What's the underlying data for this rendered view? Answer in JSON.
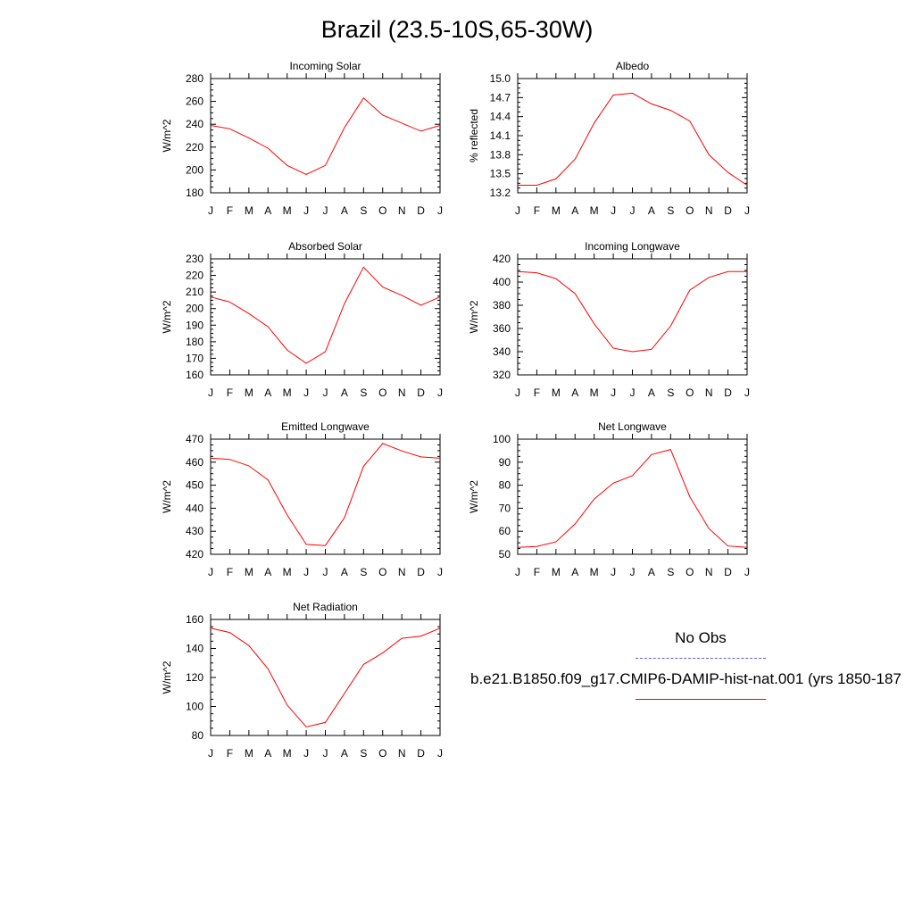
{
  "title": "Brazil (23.5-10S,65-30W)",
  "legend": {
    "obs_label": "No Obs",
    "model_label": "b.e21.B1850.f09_g17.CMIP6-DAMIP-hist-nat.001 (yrs 1850-187",
    "obs_color": "#5a5aff",
    "model_color": "#ff0000"
  },
  "chart_data": [
    {
      "type": "line",
      "title": "Incoming Solar",
      "ylabel": "W/m^2",
      "categories": [
        "J",
        "F",
        "M",
        "A",
        "M",
        "J",
        "J",
        "A",
        "S",
        "O",
        "N",
        "D",
        "J"
      ],
      "ylim": [
        180,
        280
      ],
      "yticks": [
        180,
        200,
        220,
        240,
        260,
        280
      ],
      "ytick_labels": [
        "180",
        "200",
        "220",
        "240",
        "260",
        "280"
      ],
      "series": [
        {
          "color": "#ff0000",
          "values": [
            239,
            236,
            228,
            219,
            204,
            196,
            204,
            237,
            263,
            248,
            241,
            234,
            239
          ]
        }
      ]
    },
    {
      "type": "line",
      "title": "Albedo",
      "ylabel": "% reflected",
      "categories": [
        "J",
        "F",
        "M",
        "A",
        "M",
        "J",
        "J",
        "A",
        "S",
        "O",
        "N",
        "D",
        "J"
      ],
      "ylim": [
        13.2,
        15.0
      ],
      "yticks": [
        13.2,
        13.5,
        13.8,
        14.1,
        14.4,
        14.7,
        15.0
      ],
      "ytick_labels": [
        "13.2",
        "13.5",
        "13.8",
        "14.1",
        "14.4",
        "14.7",
        "15.0"
      ],
      "series": [
        {
          "color": "#ff0000",
          "values": [
            13.32,
            13.32,
            13.42,
            13.73,
            14.3,
            14.74,
            14.77,
            14.6,
            14.5,
            14.33,
            13.8,
            13.52,
            13.32
          ]
        }
      ]
    },
    {
      "type": "line",
      "title": "Absorbed Solar",
      "ylabel": "W/m^2",
      "categories": [
        "J",
        "F",
        "M",
        "A",
        "M",
        "J",
        "J",
        "A",
        "S",
        "O",
        "N",
        "D",
        "J"
      ],
      "ylim": [
        160,
        230
      ],
      "yticks": [
        160,
        170,
        180,
        190,
        200,
        210,
        220,
        230
      ],
      "ytick_labels": [
        "160",
        "170",
        "180",
        "190",
        "200",
        "210",
        "220",
        "230"
      ],
      "series": [
        {
          "color": "#ff0000",
          "values": [
            207,
            204,
            197,
            189,
            175,
            167,
            174,
            203,
            225,
            213,
            208,
            202,
            207
          ]
        }
      ]
    },
    {
      "type": "line",
      "title": "Incoming Longwave",
      "ylabel": "W/m^2",
      "categories": [
        "J",
        "F",
        "M",
        "A",
        "M",
        "J",
        "J",
        "A",
        "S",
        "O",
        "N",
        "D",
        "J"
      ],
      "ylim": [
        320,
        420
      ],
      "yticks": [
        320,
        340,
        360,
        380,
        400,
        420
      ],
      "ytick_labels": [
        "320",
        "340",
        "360",
        "380",
        "400",
        "420"
      ],
      "series": [
        {
          "color": "#ff0000",
          "values": [
            409,
            408,
            403,
            390,
            364,
            343,
            340,
            342,
            362,
            393,
            404,
            409,
            409
          ]
        }
      ]
    },
    {
      "type": "line",
      "title": "Emitted Longwave",
      "ylabel": "W/m^2",
      "categories": [
        "J",
        "F",
        "M",
        "A",
        "M",
        "J",
        "J",
        "A",
        "S",
        "O",
        "N",
        "D",
        "J"
      ],
      "ylim": [
        420,
        470
      ],
      "yticks": [
        420,
        430,
        440,
        450,
        460,
        470
      ],
      "ytick_labels": [
        "420",
        "430",
        "440",
        "450",
        "460",
        "470"
      ],
      "series": [
        {
          "color": "#ff0000",
          "values": [
            461.7,
            461.2,
            458.4,
            452.3,
            437.1,
            424.3,
            423.8,
            435.9,
            458.2,
            468.1,
            464.9,
            462.3,
            461.7
          ]
        }
      ]
    },
    {
      "type": "line",
      "title": "Net Longwave",
      "ylabel": "W/m^2",
      "categories": [
        "J",
        "F",
        "M",
        "A",
        "M",
        "J",
        "J",
        "A",
        "S",
        "O",
        "N",
        "D",
        "J"
      ],
      "ylim": [
        50,
        100
      ],
      "yticks": [
        50,
        60,
        70,
        80,
        90,
        100
      ],
      "ytick_labels": [
        "50",
        "60",
        "70",
        "80",
        "90",
        "100"
      ],
      "series": [
        {
          "color": "#ff0000",
          "values": [
            53,
            53.4,
            55.4,
            63.2,
            74,
            80.9,
            84.1,
            93.3,
            95.5,
            75,
            61.2,
            53.6,
            53
          ]
        }
      ]
    },
    {
      "type": "line",
      "title": "Net Radiation",
      "ylabel": "W/m^2",
      "categories": [
        "J",
        "F",
        "M",
        "A",
        "M",
        "J",
        "J",
        "A",
        "S",
        "O",
        "N",
        "D",
        "J"
      ],
      "ylim": [
        80,
        160
      ],
      "yticks": [
        80,
        100,
        120,
        140,
        160
      ],
      "ytick_labels": [
        "80",
        "100",
        "120",
        "140",
        "160"
      ],
      "series": [
        {
          "color": "#ff0000",
          "values": [
            154,
            151,
            142,
            126,
            101,
            86,
            89,
            109,
            129,
            137,
            147,
            148.5,
            154
          ]
        }
      ]
    }
  ]
}
